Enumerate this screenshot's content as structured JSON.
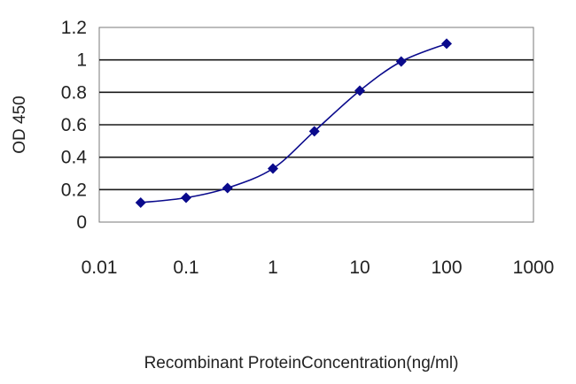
{
  "chart_data": {
    "type": "line",
    "title": "",
    "xlabel": "Recombinant ProteinConcentration(ng/ml)",
    "ylabel": "OD 450",
    "x_scale": "log",
    "xlim": [
      0.01,
      1000
    ],
    "ylim": [
      0,
      1.2
    ],
    "x_ticks": [
      "0.01",
      "0.1",
      "1",
      "10",
      "100",
      "1000"
    ],
    "y_ticks": [
      "0",
      "0.2",
      "0.4",
      "0.6",
      "0.8",
      "1",
      "1.2"
    ],
    "grid": "horizontal",
    "legend": "none",
    "series": [
      {
        "x": [
          0.03,
          0.1,
          0.3,
          1,
          3,
          10,
          30,
          100
        ],
        "y": [
          0.12,
          0.15,
          0.21,
          0.33,
          0.56,
          0.81,
          0.99,
          1.1
        ],
        "color": "#0a0a8c",
        "marker": "diamond"
      }
    ]
  }
}
